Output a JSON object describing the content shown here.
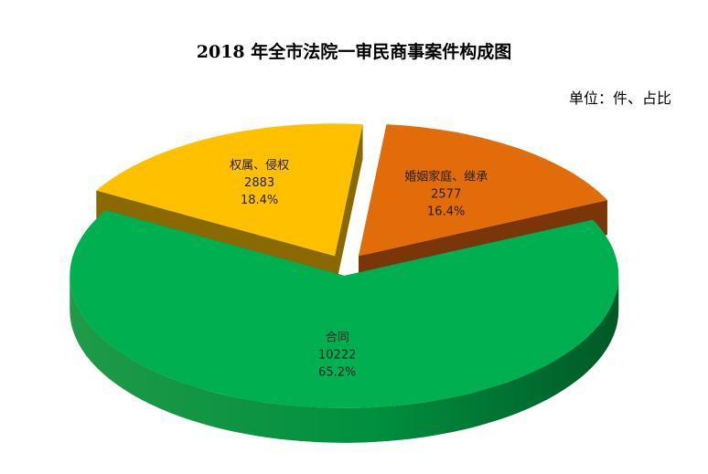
{
  "chart_data": {
    "type": "pie",
    "title": "2018 年全市法院一审民商事案件构成图",
    "unit": "单位：件、占比",
    "slices": [
      {
        "label": "合同",
        "value": 10222,
        "percent": "65.2%",
        "color": "#00b050",
        "side": "#007a38"
      },
      {
        "label": "权属、侵权",
        "value": 2883,
        "percent": "18.4%",
        "color": "#ffc000",
        "side": "#8a6a00"
      },
      {
        "label": "婚姻家庭、继承",
        "value": 2577,
        "percent": "16.4%",
        "color": "#e26b0a",
        "side": "#7a3608"
      }
    ],
    "legend": "none",
    "grid": false
  }
}
